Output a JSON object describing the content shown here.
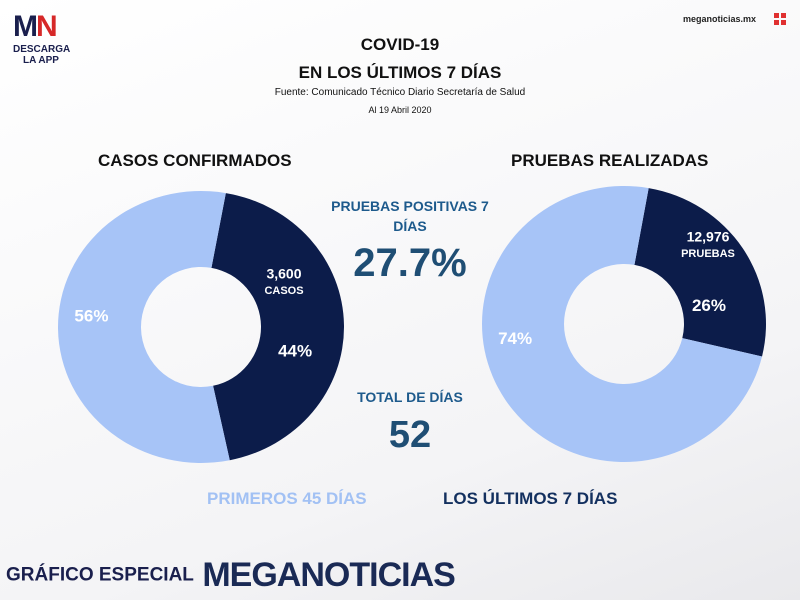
{
  "branding": {
    "logo_mark": "MN",
    "logo_sub": "DESCARGA LA APP",
    "site": "meganoticias.mx",
    "footer_label": "GRÁFICO ESPECIAL",
    "footer_brand": "MEGANOTICIAS"
  },
  "header": {
    "title": "COVID-19",
    "subtitle": "EN LOS ÚLTIMOS 7 DÍAS",
    "source": "Fuente: Comunicado Técnico Diario Secretaría de Salud",
    "date": "Al 19 Abril 2020"
  },
  "center": {
    "positive_label": "PRUEBAS POSITIVAS 7 DÍAS",
    "positive_value": "27.7%",
    "days_label": "TOTAL DE DÍAS",
    "days_value": "52"
  },
  "legend": {
    "first": "PRIMEROS 45 DÍAS",
    "last": "LOS ÚLTIMOS 7 DÍAS"
  },
  "colors": {
    "first_period": "#a7c4f7",
    "last_period": "#0c1c4a",
    "accent_blue": "#1d5a8c"
  },
  "chart_data": [
    {
      "type": "pie",
      "title": "CASOS CONFIRMADOS",
      "series": [
        {
          "name": "PRIMEROS 45 DÍAS",
          "value": 56,
          "label": "56%"
        },
        {
          "name": "LOS ÚLTIMOS 7 DÍAS",
          "value": 44,
          "label": "44%",
          "detail_value": "3,600",
          "detail_unit": "CASOS"
        }
      ]
    },
    {
      "type": "pie",
      "title": "PRUEBAS REALIZADAS",
      "series": [
        {
          "name": "PRIMEROS 45 DÍAS",
          "value": 74,
          "label": "74%"
        },
        {
          "name": "LOS ÚLTIMOS 7 DÍAS",
          "value": 26,
          "label": "26%",
          "detail_value": "12,976",
          "detail_unit": "PRUEBAS"
        }
      ]
    }
  ]
}
